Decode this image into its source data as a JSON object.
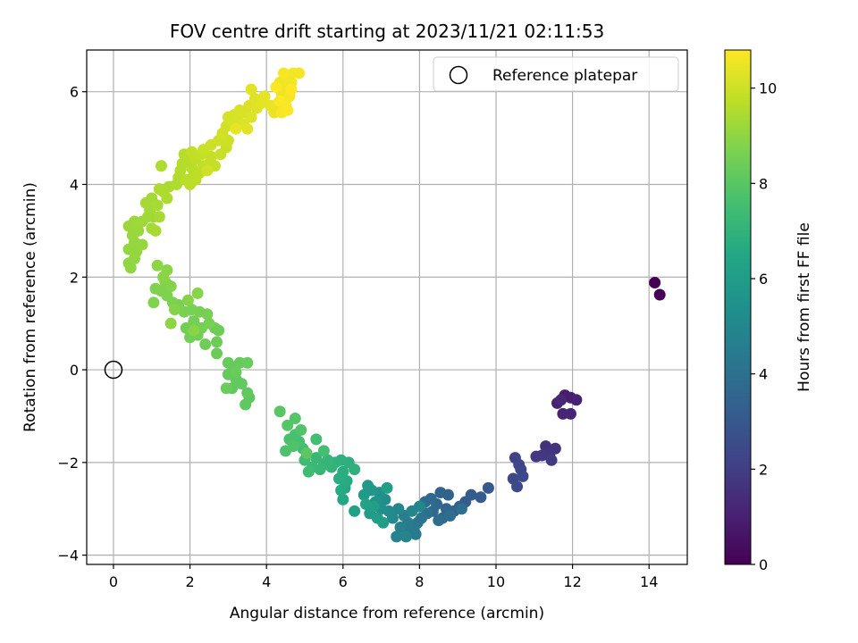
{
  "chart_data": {
    "type": "scatter",
    "title": "FOV centre drift starting at 2023/11/21 02:11:53",
    "xlabel": "Angular distance from reference (arcmin)",
    "ylabel": "Rotation from reference (arcmin)",
    "xlim": [
      -0.7,
      15.0
    ],
    "ylim": [
      -4.2,
      6.9
    ],
    "xticks": [
      0,
      2,
      4,
      6,
      8,
      10,
      12,
      14
    ],
    "yticks": [
      -4,
      -2,
      0,
      2,
      4,
      6
    ],
    "grid": true,
    "legend": {
      "position": "upper-right",
      "entries": [
        "Reference platepar"
      ]
    },
    "reference_point": {
      "x": 0,
      "y": 0
    },
    "colorbar": {
      "label": "Hours from first FF file",
      "range": [
        0,
        10.8
      ],
      "ticks": [
        0,
        2,
        4,
        6,
        8,
        10
      ],
      "colormap": "viridis"
    },
    "points": [
      {
        "x": 14.15,
        "y": 1.88,
        "h": 0.0
      },
      {
        "x": 14.28,
        "y": 1.62,
        "h": 0.05
      },
      {
        "x": 11.8,
        "y": -0.55,
        "h": 0.9
      },
      {
        "x": 11.95,
        "y": -0.6,
        "h": 0.95
      },
      {
        "x": 12.1,
        "y": -0.65,
        "h": 1.0
      },
      {
        "x": 11.6,
        "y": -0.72,
        "h": 1.05
      },
      {
        "x": 11.75,
        "y": -0.95,
        "h": 1.1
      },
      {
        "x": 11.95,
        "y": -0.95,
        "h": 1.15
      },
      {
        "x": 11.7,
        "y": -0.65,
        "h": 1.2
      },
      {
        "x": 11.3,
        "y": -1.65,
        "h": 1.6
      },
      {
        "x": 11.55,
        "y": -1.7,
        "h": 1.65
      },
      {
        "x": 11.4,
        "y": -1.8,
        "h": 1.7
      },
      {
        "x": 11.2,
        "y": -1.85,
        "h": 1.75
      },
      {
        "x": 11.05,
        "y": -1.87,
        "h": 1.8
      },
      {
        "x": 11.45,
        "y": -1.95,
        "h": 1.85
      },
      {
        "x": 10.5,
        "y": -1.9,
        "h": 2.2
      },
      {
        "x": 10.6,
        "y": -2.05,
        "h": 2.25
      },
      {
        "x": 10.65,
        "y": -2.15,
        "h": 2.3
      },
      {
        "x": 10.45,
        "y": -2.35,
        "h": 2.35
      },
      {
        "x": 10.7,
        "y": -2.3,
        "h": 2.4
      },
      {
        "x": 10.55,
        "y": -2.52,
        "h": 2.45
      },
      {
        "x": 9.8,
        "y": -2.55,
        "h": 3.0
      },
      {
        "x": 9.6,
        "y": -2.75,
        "h": 3.1
      },
      {
        "x": 9.35,
        "y": -2.7,
        "h": 3.15
      },
      {
        "x": 9.2,
        "y": -2.85,
        "h": 3.2
      },
      {
        "x": 9.05,
        "y": -2.95,
        "h": 3.3
      },
      {
        "x": 8.9,
        "y": -3.05,
        "h": 3.4
      },
      {
        "x": 8.75,
        "y": -2.7,
        "h": 3.45
      },
      {
        "x": 8.55,
        "y": -2.65,
        "h": 3.5
      },
      {
        "x": 8.7,
        "y": -3.0,
        "h": 3.55
      },
      {
        "x": 8.6,
        "y": -3.2,
        "h": 3.6
      },
      {
        "x": 8.45,
        "y": -2.9,
        "h": 3.65
      },
      {
        "x": 8.35,
        "y": -3.05,
        "h": 3.7
      },
      {
        "x": 8.3,
        "y": -2.78,
        "h": 3.75
      },
      {
        "x": 8.15,
        "y": -2.85,
        "h": 3.8
      },
      {
        "x": 8.5,
        "y": -3.25,
        "h": 3.85
      },
      {
        "x": 8.8,
        "y": -3.15,
        "h": 3.9
      },
      {
        "x": 9.1,
        "y": -3.0,
        "h": 3.95
      },
      {
        "x": 8.2,
        "y": -3.1,
        "h": 4.0
      },
      {
        "x": 8.05,
        "y": -3.2,
        "h": 4.1
      },
      {
        "x": 7.95,
        "y": -3.3,
        "h": 4.2
      },
      {
        "x": 7.85,
        "y": -3.4,
        "h": 4.3
      },
      {
        "x": 7.75,
        "y": -3.5,
        "h": 4.4
      },
      {
        "x": 7.9,
        "y": -3.55,
        "h": 4.45
      },
      {
        "x": 7.7,
        "y": -3.3,
        "h": 4.5
      },
      {
        "x": 7.6,
        "y": -3.15,
        "h": 4.6
      },
      {
        "x": 7.5,
        "y": -3.4,
        "h": 4.7
      },
      {
        "x": 7.4,
        "y": -3.6,
        "h": 4.8
      },
      {
        "x": 7.65,
        "y": -3.6,
        "h": 4.85
      },
      {
        "x": 7.8,
        "y": -3.05,
        "h": 4.9
      },
      {
        "x": 8.0,
        "y": -2.95,
        "h": 4.95
      },
      {
        "x": 7.45,
        "y": -3.0,
        "h": 5.0
      },
      {
        "x": 7.3,
        "y": -3.2,
        "h": 5.1
      },
      {
        "x": 7.2,
        "y": -3.05,
        "h": 5.2
      },
      {
        "x": 7.1,
        "y": -2.8,
        "h": 5.3
      },
      {
        "x": 7.0,
        "y": -3.0,
        "h": 5.4
      },
      {
        "x": 6.95,
        "y": -2.65,
        "h": 5.5
      },
      {
        "x": 6.85,
        "y": -2.85,
        "h": 5.6
      },
      {
        "x": 6.75,
        "y": -2.6,
        "h": 5.7
      },
      {
        "x": 6.65,
        "y": -2.5,
        "h": 5.8
      },
      {
        "x": 6.55,
        "y": -2.7,
        "h": 5.9
      },
      {
        "x": 6.7,
        "y": -3.1,
        "h": 5.95
      },
      {
        "x": 6.9,
        "y": -3.2,
        "h": 6.0
      },
      {
        "x": 7.05,
        "y": -3.3,
        "h": 6.05
      },
      {
        "x": 6.8,
        "y": -2.95,
        "h": 6.1
      },
      {
        "x": 7.15,
        "y": -2.55,
        "h": 6.15
      },
      {
        "x": 6.3,
        "y": -3.05,
        "h": 6.2
      },
      {
        "x": 6.6,
        "y": -2.9,
        "h": 6.25
      },
      {
        "x": 6.05,
        "y": -2.55,
        "h": 6.5
      },
      {
        "x": 6.0,
        "y": -2.8,
        "h": 6.55
      },
      {
        "x": 5.95,
        "y": -2.6,
        "h": 6.6
      },
      {
        "x": 6.1,
        "y": -2.4,
        "h": 6.65
      },
      {
        "x": 5.9,
        "y": -2.35,
        "h": 6.7
      },
      {
        "x": 6.0,
        "y": -2.2,
        "h": 6.75
      },
      {
        "x": 6.15,
        "y": -2.0,
        "h": 6.8
      },
      {
        "x": 5.95,
        "y": -1.95,
        "h": 6.85
      },
      {
        "x": 6.3,
        "y": -2.15,
        "h": 6.9
      },
      {
        "x": 5.8,
        "y": -2.0,
        "h": 7.0
      },
      {
        "x": 5.7,
        "y": -2.1,
        "h": 7.05
      },
      {
        "x": 5.6,
        "y": -1.95,
        "h": 7.1
      },
      {
        "x": 5.5,
        "y": -2.05,
        "h": 7.15
      },
      {
        "x": 5.4,
        "y": -2.15,
        "h": 7.2
      },
      {
        "x": 5.3,
        "y": -1.9,
        "h": 7.25
      },
      {
        "x": 5.2,
        "y": -2.1,
        "h": 7.3
      },
      {
        "x": 5.1,
        "y": -2.2,
        "h": 7.35
      },
      {
        "x": 5.0,
        "y": -1.95,
        "h": 7.4
      },
      {
        "x": 4.95,
        "y": -1.7,
        "h": 7.45
      },
      {
        "x": 5.3,
        "y": -1.5,
        "h": 7.5
      },
      {
        "x": 5.5,
        "y": -1.75,
        "h": 7.55
      },
      {
        "x": 4.85,
        "y": -1.55,
        "h": 7.6
      },
      {
        "x": 4.75,
        "y": -1.4,
        "h": 7.65
      },
      {
        "x": 4.6,
        "y": -1.5,
        "h": 7.7
      },
      {
        "x": 4.5,
        "y": -1.75,
        "h": 7.75
      },
      {
        "x": 4.7,
        "y": -1.65,
        "h": 7.8
      },
      {
        "x": 4.9,
        "y": -1.3,
        "h": 7.85
      },
      {
        "x": 4.75,
        "y": -1.05,
        "h": 7.9
      },
      {
        "x": 4.55,
        "y": -1.2,
        "h": 7.95
      },
      {
        "x": 4.35,
        "y": -0.9,
        "h": 8.0
      },
      {
        "x": 5.05,
        "y": -1.8,
        "h": 8.02
      },
      {
        "x": 3.55,
        "y": -0.6,
        "h": 8.1
      },
      {
        "x": 3.45,
        "y": -0.75,
        "h": 8.12
      },
      {
        "x": 3.5,
        "y": -0.5,
        "h": 8.14
      },
      {
        "x": 3.35,
        "y": -0.3,
        "h": 8.16
      },
      {
        "x": 3.2,
        "y": -0.2,
        "h": 8.18
      },
      {
        "x": 3.1,
        "y": -0.4,
        "h": 8.2
      },
      {
        "x": 3.0,
        "y": -0.1,
        "h": 8.22
      },
      {
        "x": 3.15,
        "y": 0.05,
        "h": 8.24
      },
      {
        "x": 3.3,
        "y": 0.15,
        "h": 8.26
      },
      {
        "x": 3.0,
        "y": 0.15,
        "h": 8.28
      },
      {
        "x": 3.5,
        "y": 0.15,
        "h": 8.3
      },
      {
        "x": 3.2,
        "y": -0.05,
        "h": 8.32
      },
      {
        "x": 2.95,
        "y": -0.4,
        "h": 8.34
      },
      {
        "x": 2.7,
        "y": 0.35,
        "h": 8.36
      },
      {
        "x": 2.7,
        "y": 0.6,
        "h": 8.38
      },
      {
        "x": 2.65,
        "y": 0.9,
        "h": 8.4
      },
      {
        "x": 2.75,
        "y": 0.85,
        "h": 8.42
      },
      {
        "x": 2.4,
        "y": 0.55,
        "h": 8.44
      },
      {
        "x": 2.2,
        "y": 0.75,
        "h": 8.46
      },
      {
        "x": 2.0,
        "y": 0.7,
        "h": 8.48
      },
      {
        "x": 1.9,
        "y": 0.9,
        "h": 8.5
      },
      {
        "x": 2.1,
        "y": 1.05,
        "h": 8.52
      },
      {
        "x": 2.3,
        "y": 0.9,
        "h": 8.54
      },
      {
        "x": 2.5,
        "y": 1.0,
        "h": 8.56
      },
      {
        "x": 2.45,
        "y": 1.2,
        "h": 8.58
      },
      {
        "x": 2.25,
        "y": 1.25,
        "h": 8.6
      },
      {
        "x": 2.05,
        "y": 1.3,
        "h": 8.62
      },
      {
        "x": 1.85,
        "y": 1.25,
        "h": 8.64
      },
      {
        "x": 1.7,
        "y": 1.4,
        "h": 8.66
      },
      {
        "x": 1.55,
        "y": 1.45,
        "h": 8.68
      },
      {
        "x": 1.4,
        "y": 1.6,
        "h": 8.7
      },
      {
        "x": 1.25,
        "y": 1.7,
        "h": 8.72
      },
      {
        "x": 1.1,
        "y": 1.75,
        "h": 8.74
      },
      {
        "x": 1.05,
        "y": 1.45,
        "h": 8.76
      },
      {
        "x": 1.35,
        "y": 1.9,
        "h": 8.78
      },
      {
        "x": 1.5,
        "y": 1.8,
        "h": 8.8
      },
      {
        "x": 1.6,
        "y": 1.3,
        "h": 8.82
      },
      {
        "x": 1.95,
        "y": 1.5,
        "h": 8.84
      },
      {
        "x": 2.2,
        "y": 1.65,
        "h": 8.86
      },
      {
        "x": 2.1,
        "y": 0.85,
        "h": 8.88
      },
      {
        "x": 1.3,
        "y": 2.0,
        "h": 8.9
      },
      {
        "x": 1.4,
        "y": 2.15,
        "h": 8.92
      },
      {
        "x": 1.15,
        "y": 2.25,
        "h": 8.94
      },
      {
        "x": 1.5,
        "y": 1.0,
        "h": 8.96
      },
      {
        "x": 0.45,
        "y": 2.2,
        "h": 9.0
      },
      {
        "x": 0.4,
        "y": 2.3,
        "h": 9.02
      },
      {
        "x": 0.55,
        "y": 2.4,
        "h": 9.04
      },
      {
        "x": 0.4,
        "y": 2.6,
        "h": 9.06
      },
      {
        "x": 0.6,
        "y": 2.55,
        "h": 9.08
      },
      {
        "x": 0.55,
        "y": 2.75,
        "h": 9.1
      },
      {
        "x": 0.75,
        "y": 2.7,
        "h": 9.12
      },
      {
        "x": 0.5,
        "y": 2.9,
        "h": 9.14
      },
      {
        "x": 0.65,
        "y": 3.0,
        "h": 9.16
      },
      {
        "x": 0.4,
        "y": 3.1,
        "h": 9.18
      },
      {
        "x": 0.55,
        "y": 3.2,
        "h": 9.2
      },
      {
        "x": 0.75,
        "y": 3.2,
        "h": 9.22
      },
      {
        "x": 0.9,
        "y": 3.3,
        "h": 9.24
      },
      {
        "x": 1.05,
        "y": 3.3,
        "h": 9.26
      },
      {
        "x": 1.0,
        "y": 3.05,
        "h": 9.28
      },
      {
        "x": 0.95,
        "y": 3.45,
        "h": 9.3
      },
      {
        "x": 0.85,
        "y": 3.6,
        "h": 9.32
      },
      {
        "x": 1.0,
        "y": 3.7,
        "h": 9.34
      },
      {
        "x": 1.15,
        "y": 3.55,
        "h": 9.36
      },
      {
        "x": 1.2,
        "y": 3.3,
        "h": 9.38
      },
      {
        "x": 1.1,
        "y": 3.0,
        "h": 9.4
      },
      {
        "x": 1.3,
        "y": 3.85,
        "h": 9.42
      },
      {
        "x": 1.45,
        "y": 3.95,
        "h": 9.44
      },
      {
        "x": 1.25,
        "y": 4.4,
        "h": 9.46
      },
      {
        "x": 1.4,
        "y": 3.7,
        "h": 9.48
      },
      {
        "x": 1.2,
        "y": 3.9,
        "h": 9.5
      },
      {
        "x": 1.65,
        "y": 4.0,
        "h": 9.52
      },
      {
        "x": 1.7,
        "y": 4.15,
        "h": 9.54
      },
      {
        "x": 1.75,
        "y": 4.3,
        "h": 9.56
      },
      {
        "x": 1.8,
        "y": 4.45,
        "h": 9.58
      },
      {
        "x": 1.85,
        "y": 4.65,
        "h": 9.6
      },
      {
        "x": 1.95,
        "y": 4.5,
        "h": 9.62
      },
      {
        "x": 2.05,
        "y": 4.35,
        "h": 9.64
      },
      {
        "x": 2.1,
        "y": 4.2,
        "h": 9.66
      },
      {
        "x": 1.9,
        "y": 4.1,
        "h": 9.68
      },
      {
        "x": 2.0,
        "y": 4.0,
        "h": 9.7
      },
      {
        "x": 2.15,
        "y": 4.1,
        "h": 9.72
      },
      {
        "x": 2.25,
        "y": 4.25,
        "h": 9.74
      },
      {
        "x": 2.35,
        "y": 4.4,
        "h": 9.76
      },
      {
        "x": 2.15,
        "y": 4.55,
        "h": 9.78
      },
      {
        "x": 2.05,
        "y": 4.7,
        "h": 9.8
      },
      {
        "x": 2.3,
        "y": 4.65,
        "h": 9.82
      },
      {
        "x": 2.5,
        "y": 4.45,
        "h": 9.84
      },
      {
        "x": 2.65,
        "y": 4.4,
        "h": 9.86
      },
      {
        "x": 2.55,
        "y": 4.6,
        "h": 9.88
      },
      {
        "x": 2.35,
        "y": 4.75,
        "h": 9.9
      },
      {
        "x": 2.8,
        "y": 4.65,
        "h": 9.92
      },
      {
        "x": 2.95,
        "y": 4.8,
        "h": 9.94
      },
      {
        "x": 2.55,
        "y": 4.85,
        "h": 9.96
      },
      {
        "x": 2.75,
        "y": 4.95,
        "h": 9.98
      },
      {
        "x": 3.0,
        "y": 4.95,
        "h": 10.0
      },
      {
        "x": 2.45,
        "y": 4.3,
        "h": 10.02
      },
      {
        "x": 2.85,
        "y": 5.1,
        "h": 10.05
      },
      {
        "x": 2.95,
        "y": 5.25,
        "h": 10.08
      },
      {
        "x": 3.1,
        "y": 5.35,
        "h": 10.1
      },
      {
        "x": 3.0,
        "y": 5.45,
        "h": 10.12
      },
      {
        "x": 3.15,
        "y": 5.5,
        "h": 10.14
      },
      {
        "x": 3.25,
        "y": 5.4,
        "h": 10.16
      },
      {
        "x": 3.3,
        "y": 5.6,
        "h": 10.18
      },
      {
        "x": 3.45,
        "y": 5.55,
        "h": 10.2
      },
      {
        "x": 3.55,
        "y": 5.7,
        "h": 10.22
      },
      {
        "x": 3.4,
        "y": 5.3,
        "h": 10.24
      },
      {
        "x": 3.6,
        "y": 5.45,
        "h": 10.26
      },
      {
        "x": 3.75,
        "y": 5.65,
        "h": 10.28
      },
      {
        "x": 3.7,
        "y": 5.85,
        "h": 10.3
      },
      {
        "x": 3.85,
        "y": 5.75,
        "h": 10.32
      },
      {
        "x": 3.5,
        "y": 5.2,
        "h": 10.34
      },
      {
        "x": 3.6,
        "y": 6.05,
        "h": 10.36
      },
      {
        "x": 3.95,
        "y": 5.9,
        "h": 10.38
      },
      {
        "x": 3.2,
        "y": 5.2,
        "h": 10.4
      },
      {
        "x": 4.1,
        "y": 5.7,
        "h": 10.45
      },
      {
        "x": 4.2,
        "y": 5.55,
        "h": 10.48
      },
      {
        "x": 4.3,
        "y": 5.75,
        "h": 10.5
      },
      {
        "x": 4.4,
        "y": 5.95,
        "h": 10.52
      },
      {
        "x": 4.35,
        "y": 6.2,
        "h": 10.54
      },
      {
        "x": 4.5,
        "y": 6.05,
        "h": 10.56
      },
      {
        "x": 4.55,
        "y": 6.3,
        "h": 10.58
      },
      {
        "x": 4.65,
        "y": 6.2,
        "h": 10.6
      },
      {
        "x": 4.7,
        "y": 6.4,
        "h": 10.62
      },
      {
        "x": 4.85,
        "y": 6.4,
        "h": 10.64
      },
      {
        "x": 4.6,
        "y": 5.9,
        "h": 10.66
      },
      {
        "x": 4.5,
        "y": 5.7,
        "h": 10.68
      },
      {
        "x": 4.4,
        "y": 5.55,
        "h": 10.7
      },
      {
        "x": 4.45,
        "y": 6.4,
        "h": 10.72
      },
      {
        "x": 4.25,
        "y": 6.1,
        "h": 10.74
      },
      {
        "x": 4.55,
        "y": 5.6,
        "h": 10.76
      },
      {
        "x": 4.35,
        "y": 5.8,
        "h": 10.78
      },
      {
        "x": 4.65,
        "y": 6.05,
        "h": 10.8
      }
    ]
  }
}
